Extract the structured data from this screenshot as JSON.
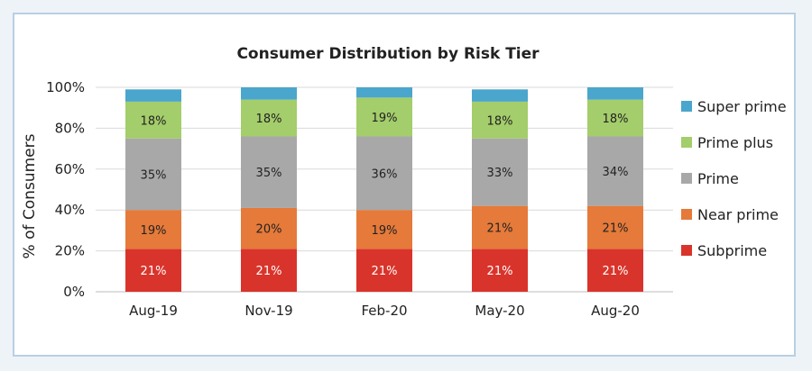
{
  "chart_data": {
    "type": "bar",
    "stacked": true,
    "title": "Consumer Distribution by Risk Tier",
    "ylabel": "% of Consumers",
    "xlabel": "",
    "ylim": [
      0,
      100
    ],
    "yticks": [
      "0%",
      "20%",
      "40%",
      "60%",
      "80%",
      "100%"
    ],
    "grid": true,
    "legend_position": "right",
    "categories": [
      "Aug-19",
      "Nov-19",
      "Feb-20",
      "May-20",
      "Aug-20"
    ],
    "series": [
      {
        "name": "Subprime",
        "color": "#d9342b",
        "label_color": "#ffffff",
        "values": [
          21,
          21,
          21,
          21,
          21
        ],
        "labels": [
          "21%",
          "21%",
          "21%",
          "21%",
          "21%"
        ]
      },
      {
        "name": "Near prime",
        "color": "#e57a3a",
        "label_color": "#222222",
        "values": [
          19,
          20,
          19,
          21,
          21
        ],
        "labels": [
          "19%",
          "20%",
          "19%",
          "21%",
          "21%"
        ]
      },
      {
        "name": "Prime",
        "color": "#a8a8a8",
        "label_color": "#222222",
        "values": [
          35,
          35,
          36,
          33,
          34
        ],
        "labels": [
          "35%",
          "35%",
          "36%",
          "33%",
          "34%"
        ]
      },
      {
        "name": "Prime plus",
        "color": "#a4cd6b",
        "label_color": "#222222",
        "values": [
          18,
          18,
          19,
          18,
          18
        ],
        "labels": [
          "18%",
          "18%",
          "19%",
          "18%",
          "18%"
        ]
      },
      {
        "name": "Super prime",
        "color": "#4aa6cc",
        "label_color": "#222222",
        "values": [
          6,
          6,
          6,
          6,
          7
        ],
        "labels": [
          "",
          "",
          "",
          "",
          ""
        ]
      }
    ],
    "legend_order": [
      "Super prime",
      "Prime plus",
      "Prime",
      "Near prime",
      "Subprime"
    ]
  }
}
